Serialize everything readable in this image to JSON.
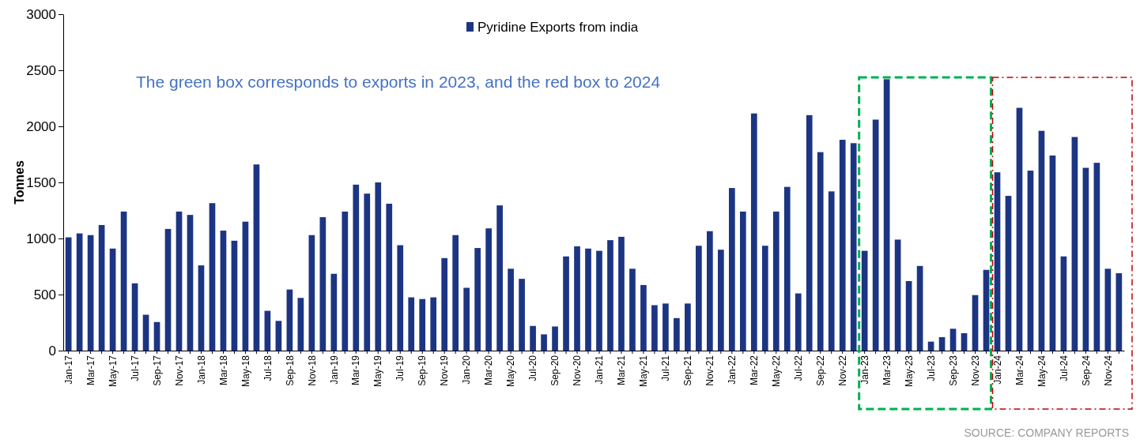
{
  "chart_data": {
    "type": "bar",
    "ylabel": "Tonnes",
    "categories": [
      "Jan-17",
      null,
      "Mar-17",
      null,
      "May-17",
      null,
      "Jul-17",
      null,
      "Sep-17",
      null,
      "Nov-17",
      null,
      "Jan-18",
      null,
      "Mar-18",
      null,
      "May-18",
      null,
      "Jul-18",
      null,
      "Sep-18",
      null,
      "Nov-18",
      null,
      "Jan-19",
      null,
      "Mar-19",
      null,
      "May-19",
      null,
      "Jul-19",
      null,
      "Sep-19",
      null,
      "Nov-19",
      null,
      "Jan-20",
      null,
      "Mar-20",
      null,
      "May-20",
      null,
      "Jul-20",
      null,
      "Sep-20",
      null,
      "Nov-20",
      null,
      "Jan-21",
      null,
      "Mar-21",
      null,
      "May-21",
      null,
      "Jul-21",
      null,
      "Sep-21",
      null,
      "Nov-21",
      null,
      "Jan-22",
      null,
      "Mar-22",
      null,
      "May-22",
      null,
      "Jul-22",
      null,
      "Sep-22",
      null,
      "Nov-22",
      null,
      "Jan-23",
      null,
      "Mar-23",
      null,
      "May-23",
      null,
      "Jul-23",
      null,
      "Sep-23",
      null,
      "Nov-23",
      null,
      "Jan-24",
      null,
      "Mar-24",
      null,
      "May-24",
      null,
      "Jul-24",
      null,
      "Sep-24",
      null,
      "Nov-24",
      null
    ],
    "series": [
      {
        "name": "Pyridine Exports from india",
        "color": "#1c3583",
        "values": [
          1010,
          1045,
          1030,
          1120,
          910,
          1240,
          600,
          320,
          255,
          1085,
          1240,
          1210,
          760,
          1315,
          1070,
          980,
          1150,
          1660,
          355,
          265,
          545,
          470,
          1030,
          1190,
          685,
          1240,
          1480,
          1400,
          1500,
          1310,
          940,
          475,
          460,
          475,
          825,
          1030,
          560,
          915,
          1090,
          1295,
          730,
          640,
          220,
          145,
          215,
          840,
          930,
          910,
          890,
          985,
          1015,
          730,
          585,
          405,
          420,
          290,
          420,
          935,
          1065,
          900,
          1450,
          1240,
          2115,
          935,
          1240,
          1460,
          510,
          2100,
          1770,
          1420,
          1880,
          1850,
          890,
          2060,
          2420,
          990,
          620,
          755,
          80,
          120,
          195,
          155,
          495,
          720,
          1590,
          1380,
          2165,
          1605,
          1960,
          1740,
          840,
          1905,
          1630,
          1675,
          730,
          690
        ]
      }
    ],
    "ylim": [
      0,
      3000
    ],
    "yticks": [
      0,
      500,
      1000,
      1500,
      2000,
      2500,
      3000
    ],
    "legend": "top",
    "annotations": [
      "The green box corresponds to exports in 2023, and the red box to 2024",
      "SOURCE: COMPANY REPORTS"
    ]
  }
}
